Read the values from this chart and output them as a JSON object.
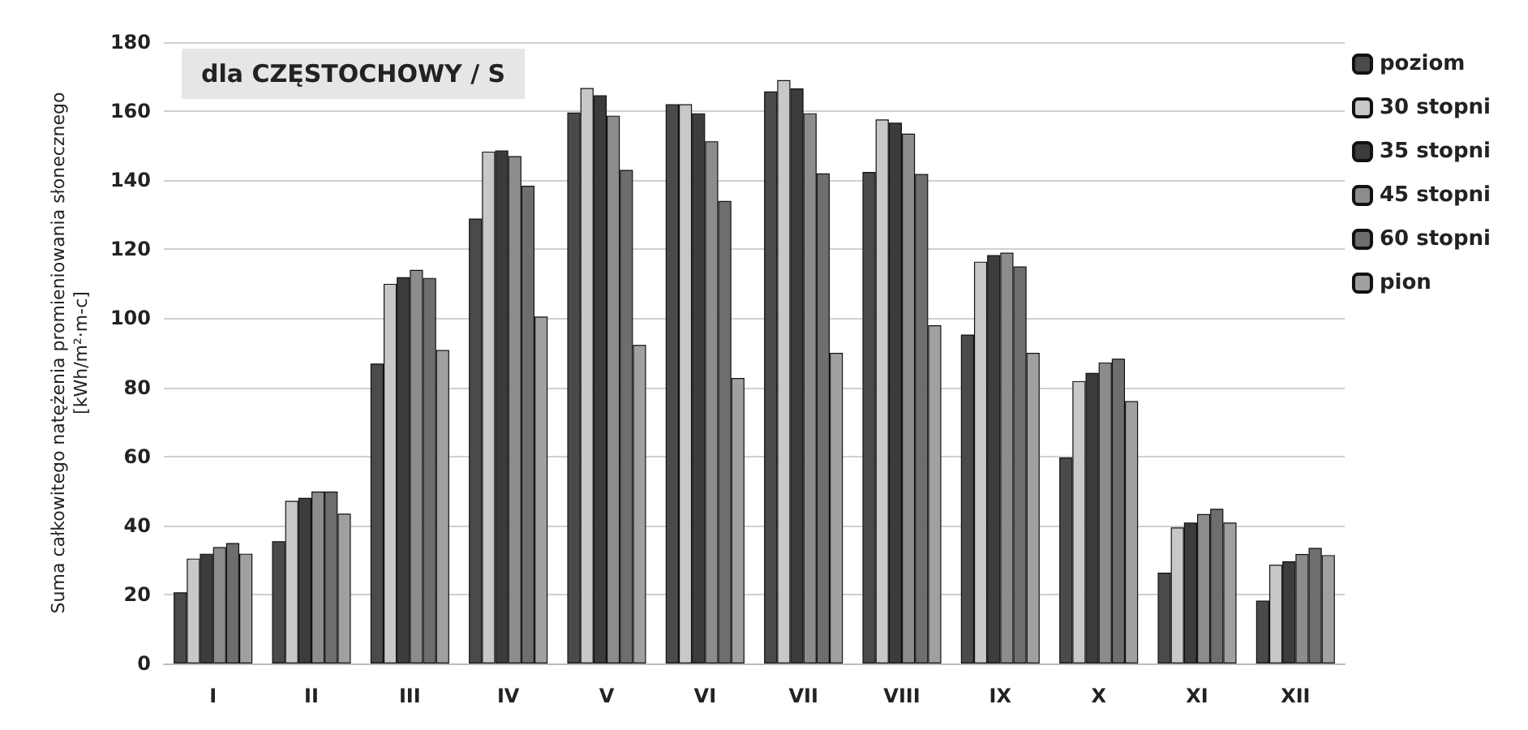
{
  "chart_data": {
    "type": "bar",
    "title": "dla CZĘSTOCHOWY / S",
    "ylabel": "Suma całkowitego natężenia promieniowania słonecznego\n[kWh/m²·m-c]",
    "categories": [
      "I",
      "II",
      "III",
      "IV",
      "V",
      "VI",
      "VII",
      "VIII",
      "IX",
      "X",
      "XI",
      "XII"
    ],
    "series": [
      {
        "name": "poziom",
        "color": "#4a4a4a",
        "values": [
          20.6,
          35.4,
          86.9,
          128.9,
          159.6,
          162,
          165.7,
          142.4,
          95.3,
          59.7,
          26.3,
          18.2
        ]
      },
      {
        "name": "30 stopni",
        "color": "#c8c8c8",
        "values": [
          30.4,
          47.1,
          110,
          148.3,
          166.7,
          162,
          169,
          157.6,
          116.4,
          81.8,
          39.4,
          28.6
        ]
      },
      {
        "name": "35 stopni",
        "color": "#3c3c3c",
        "values": [
          31.8,
          48,
          111.9,
          148.6,
          164.6,
          159.4,
          166.6,
          156.7,
          118.3,
          84.2,
          40.8,
          29.6
        ]
      },
      {
        "name": "45 stopni",
        "color": "#8c8c8c",
        "values": [
          33.7,
          49.8,
          114,
          147,
          158.7,
          151.3,
          159.4,
          153.5,
          119,
          87.2,
          43.3,
          31.7
        ]
      },
      {
        "name": "60 stopni",
        "color": "#6e6e6e",
        "values": [
          34.9,
          49.8,
          111.7,
          138.4,
          143,
          134,
          142,
          141.8,
          115,
          88.3,
          44.8,
          33.5
        ]
      },
      {
        "name": "pion",
        "color": "#a0a0a0",
        "values": [
          31.8,
          43.4,
          90.8,
          100.5,
          92.3,
          82.7,
          90,
          98,
          90,
          76,
          40.8,
          31.4
        ]
      }
    ],
    "ylim": [
      0,
      180
    ],
    "yticks": [
      0,
      20,
      40,
      60,
      80,
      100,
      120,
      140,
      160,
      180
    ],
    "grid": "y",
    "legend": "top right"
  }
}
